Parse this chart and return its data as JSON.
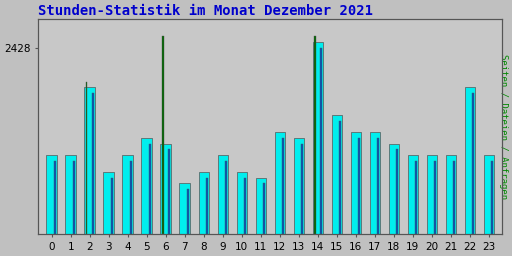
{
  "title": "Stunden-Statistik im Monat Dezember 2021",
  "ylabel": "Seiten / Dateien / Anfragen",
  "xlabel_values": [
    0,
    1,
    2,
    3,
    4,
    5,
    6,
    7,
    8,
    9,
    10,
    11,
    12,
    13,
    14,
    15,
    16,
    17,
    18,
    19,
    20,
    21,
    22,
    23
  ],
  "cyan_values": [
    2409,
    2409,
    2421,
    2406,
    2409,
    2412,
    2411,
    2404,
    2406,
    2409,
    2406,
    2405,
    2413,
    2412,
    2429,
    2416,
    2413,
    2413,
    2411,
    2409,
    2409,
    2409,
    2421,
    2409
  ],
  "blue_values": [
    2408,
    2408,
    2420,
    2405,
    2408,
    2411,
    2410,
    2403,
    2405,
    2408,
    2405,
    2404,
    2412,
    2411,
    2428,
    2415,
    2412,
    2412,
    2410,
    2408,
    2408,
    2408,
    2420,
    2408
  ],
  "green_values": [
    0,
    0,
    2422,
    0,
    0,
    0,
    2430,
    0,
    0,
    0,
    0,
    0,
    0,
    0,
    2430,
    0,
    0,
    0,
    0,
    0,
    0,
    0,
    0,
    0
  ],
  "ylim_min": 2395,
  "ylim_max": 2433,
  "ytick_val": 2428,
  "bar_color_cyan": "#00EEEE",
  "bar_color_blue": "#0055BB",
  "bar_color_green": "#006600",
  "bg_color": "#C0C0C0",
  "plot_bg": "#C8C8C8",
  "title_color": "#0000CC",
  "ylabel_color": "#008800",
  "border_color": "#555555",
  "title_fontsize": 10,
  "tick_fontsize": 7.5
}
